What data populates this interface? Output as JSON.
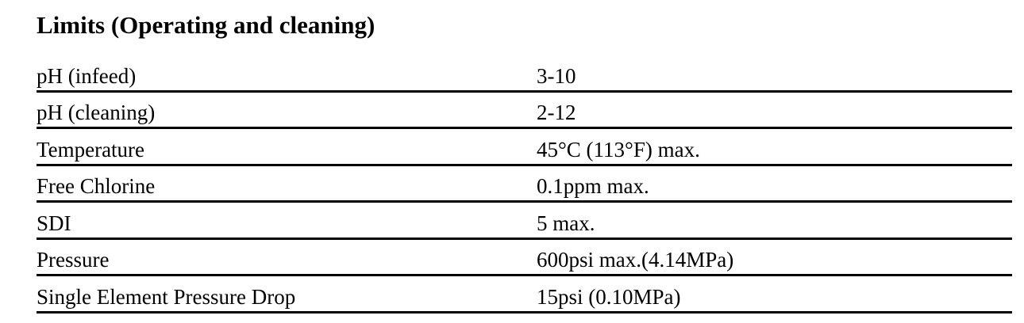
{
  "header": {
    "title": "Limits (Operating and cleaning)"
  },
  "table": {
    "rows": [
      [
        "pH (infeed)",
        "3-10"
      ],
      [
        "pH (cleaning)",
        "2-12"
      ],
      [
        "Temperature",
        "45°C (113°F) max."
      ],
      [
        "Free Chlorine",
        "0.1ppm max."
      ],
      [
        "SDI",
        "5 max."
      ],
      [
        "Pressure",
        "600psi max.(4.14MPa)"
      ],
      [
        "Single Element Pressure Drop",
        "15psi (0.10MPa)"
      ]
    ]
  }
}
